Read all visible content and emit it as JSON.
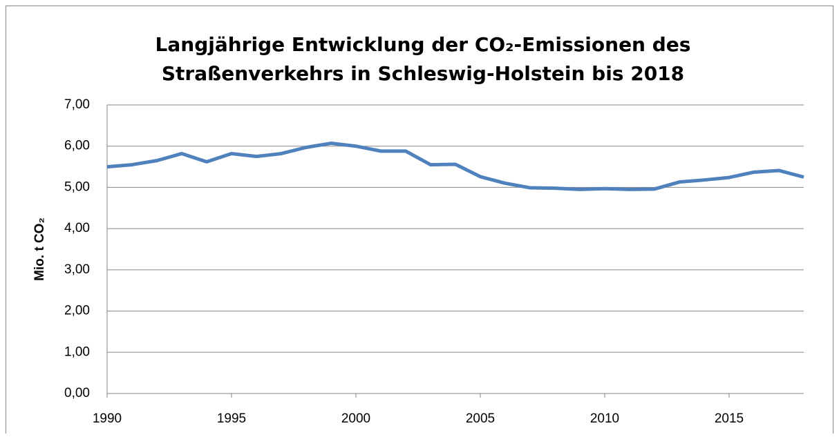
{
  "chart_data": {
    "type": "line",
    "title": [
      "Langjährige Entwicklung der CO₂-Emissionen des",
      "Straßenverkehrs in Schleswig-Holstein bis 2018"
    ],
    "y_label": "Mio. t CO₂",
    "x": [
      1990,
      1991,
      1992,
      1993,
      1994,
      1995,
      1996,
      1997,
      1998,
      1999,
      2000,
      2001,
      2002,
      2003,
      2004,
      2005,
      2006,
      2007,
      2008,
      2009,
      2010,
      2011,
      2012,
      2013,
      2014,
      2015,
      2016,
      2017,
      2018
    ],
    "series": [
      {
        "color": "#4f81bd",
        "values": [
          5.5,
          5.55,
          5.65,
          5.82,
          5.62,
          5.82,
          5.75,
          5.82,
          5.97,
          6.07,
          6.0,
          5.88,
          5.88,
          5.55,
          5.56,
          5.26,
          5.1,
          4.99,
          4.98,
          4.95,
          4.97,
          4.95,
          4.96,
          5.13,
          5.18,
          5.24,
          5.37,
          5.41,
          5.25
        ]
      }
    ],
    "xlim": [
      1990,
      2018
    ],
    "xticks": [
      1990,
      1995,
      2000,
      2005,
      2010,
      2015
    ],
    "ylim": [
      0,
      7
    ],
    "yticks": [
      {
        "value": 0,
        "label": "0,00"
      },
      {
        "value": 1,
        "label": "1,00"
      },
      {
        "value": 2,
        "label": "2,00"
      },
      {
        "value": 3,
        "label": "3,00"
      },
      {
        "value": 4,
        "label": "4,00"
      },
      {
        "value": 5,
        "label": "5,00"
      },
      {
        "value": 6,
        "label": "6,00"
      },
      {
        "value": 7,
        "label": "7,00"
      }
    ],
    "grid": true
  }
}
